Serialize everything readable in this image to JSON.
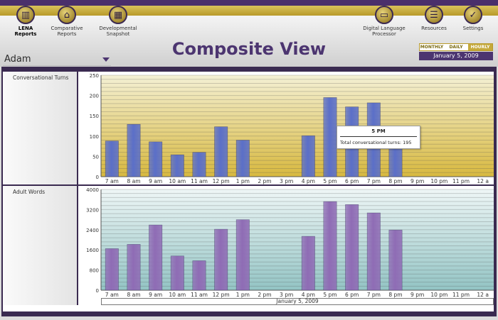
{
  "nav": [
    {
      "label": "LENA\nReports",
      "icon": "lena-icon",
      "glyph": "▥"
    },
    {
      "label": "Comparative\nReports",
      "icon": "compare-icon",
      "glyph": "⌂"
    },
    {
      "label": "Developmental\nSnapshot",
      "icon": "grid-icon",
      "glyph": "▦"
    },
    {
      "label": "Digital Language\nProcessor",
      "icon": "device-icon",
      "glyph": "▭"
    },
    {
      "label": "Resources",
      "icon": "resources-icon",
      "glyph": "☰"
    },
    {
      "label": "Settings",
      "icon": "check-icon",
      "glyph": "✓"
    }
  ],
  "title": "Composite View",
  "user": "Adam",
  "tabs": [
    "MONTHLY",
    "DAILY",
    "HOURLY"
  ],
  "selected_tab": "HOURLY",
  "date": "January 5, 2009",
  "tooltip": {
    "title": "5 PM",
    "body": "Total conversational turns: 195"
  },
  "chart_data": [
    {
      "type": "bar",
      "title": "Conversational Turns",
      "categories": [
        "7 am",
        "8 am",
        "9 am",
        "10 am",
        "11 am",
        "12 pm",
        "1 pm",
        "2 pm",
        "3 pm",
        "4 pm",
        "5 pm",
        "6 pm",
        "7 pm",
        "8 pm",
        "9 pm",
        "10 pm",
        "11 pm",
        "12 a"
      ],
      "values": [
        88,
        129,
        86,
        54,
        60,
        123,
        90,
        null,
        null,
        101,
        195,
        172,
        182,
        91,
        null,
        null,
        null,
        null
      ],
      "ylim": [
        0,
        250
      ],
      "yticks": [
        0,
        50,
        100,
        150,
        200,
        250
      ],
      "color": "#5b6fc8"
    },
    {
      "type": "bar",
      "title": "Adult Words",
      "categories": [
        "7 am",
        "8 am",
        "9 am",
        "10 am",
        "11 am",
        "12 pm",
        "1 pm",
        "2 pm",
        "3 pm",
        "4 pm",
        "5 pm",
        "6 pm",
        "7 pm",
        "8 pm",
        "9 pm",
        "10 pm",
        "11 pm",
        "12 a"
      ],
      "values": [
        1650,
        1820,
        2590,
        1360,
        1170,
        2420,
        2800,
        null,
        null,
        2140,
        3520,
        3400,
        3070,
        2390,
        null,
        null,
        null,
        null
      ],
      "ylim": [
        0,
        4000
      ],
      "yticks": [
        0,
        800,
        1600,
        2400,
        3200,
        4000
      ],
      "color": "#8f6cb5"
    }
  ]
}
